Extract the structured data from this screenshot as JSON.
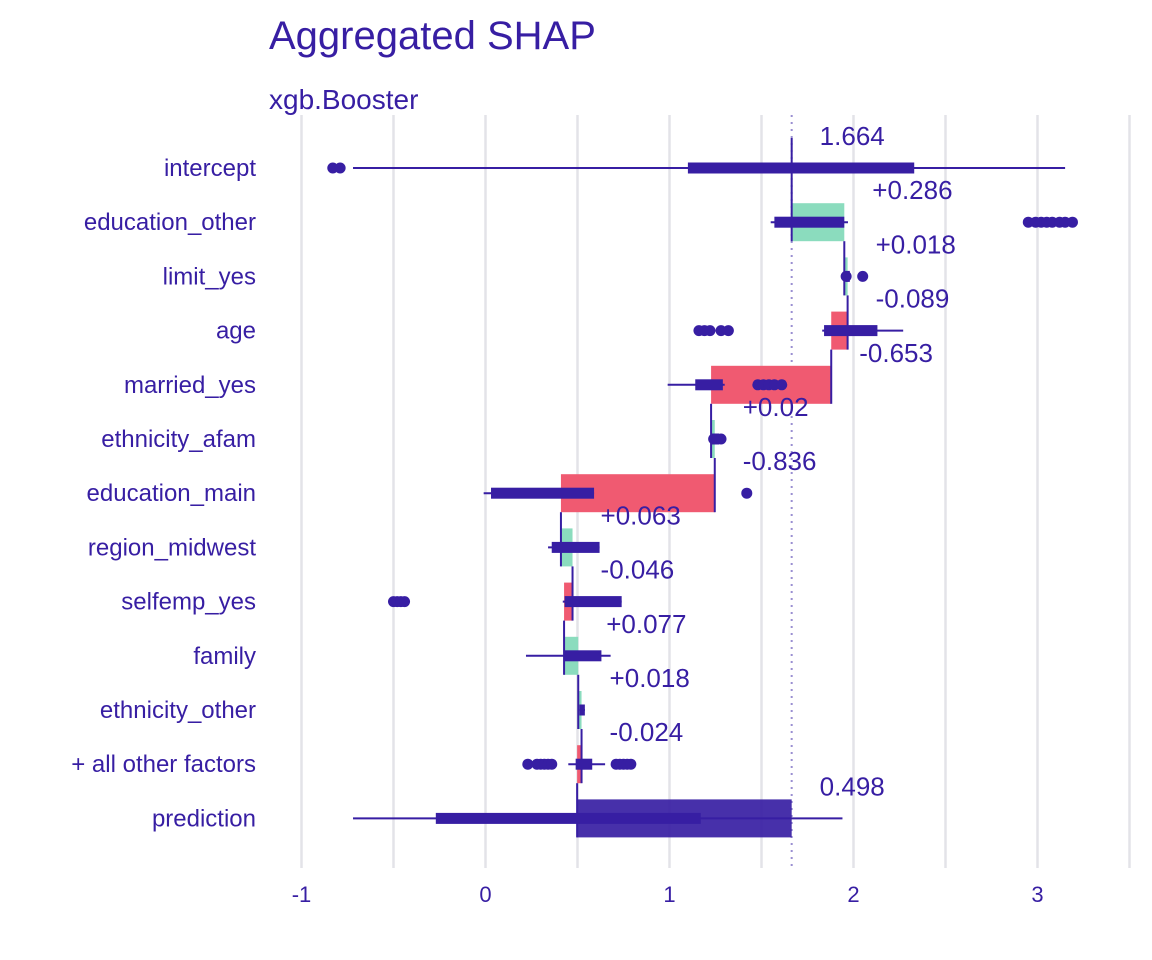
{
  "title": "Aggregated SHAP",
  "subtitle": "xgb.Booster",
  "colors": {
    "text": "#371ea3",
    "positive": "#8bdcbe",
    "negative": "#f05a71",
    "prediction": "#371ea3",
    "grid": "#e3e3e8",
    "boxplot": "#371ea3"
  },
  "chart_data": {
    "type": "bar",
    "subtype": "waterfall-with-boxplots",
    "title": "Aggregated SHAP",
    "subtitle": "xgb.Booster",
    "xlabel": "",
    "ylabel": "",
    "xlim": [
      -1.1,
      3.5
    ],
    "x_ticks": [
      -1,
      0,
      1,
      2,
      3
    ],
    "x_tick_labels": [
      "-1",
      "0",
      "1",
      "2",
      "3"
    ],
    "grid": true,
    "legend": "none",
    "intercept_line": 1.664,
    "categories": [
      "intercept",
      "education_other",
      "limit_yes",
      "age",
      "married_yes",
      "ethnicity_afam",
      "education_main",
      "region_midwest",
      "selfemp_yes",
      "family",
      "ethnicity_other",
      "+ all other factors",
      "prediction"
    ],
    "labels": [
      "1.664",
      "+0.286",
      "+0.018",
      "-0.089",
      "-0.653",
      "+0.02",
      "-0.836",
      "+0.063",
      "-0.046",
      "+0.077",
      "+0.018",
      "-0.024",
      "0.498"
    ],
    "bars": [
      {
        "name": "intercept",
        "start": null,
        "end": null,
        "kind": "none"
      },
      {
        "name": "education_other",
        "start": 1.664,
        "end": 1.95,
        "kind": "positive"
      },
      {
        "name": "limit_yes",
        "start": 1.95,
        "end": 1.968,
        "kind": "positive"
      },
      {
        "name": "age",
        "start": 1.968,
        "end": 1.879,
        "kind": "negative"
      },
      {
        "name": "married_yes",
        "start": 1.879,
        "end": 1.226,
        "kind": "negative"
      },
      {
        "name": "ethnicity_afam",
        "start": 1.226,
        "end": 1.246,
        "kind": "positive"
      },
      {
        "name": "education_main",
        "start": 1.246,
        "end": 0.41,
        "kind": "negative"
      },
      {
        "name": "region_midwest",
        "start": 0.41,
        "end": 0.473,
        "kind": "positive"
      },
      {
        "name": "selfemp_yes",
        "start": 0.473,
        "end": 0.427,
        "kind": "negative"
      },
      {
        "name": "family",
        "start": 0.427,
        "end": 0.504,
        "kind": "positive"
      },
      {
        "name": "ethnicity_other",
        "start": 0.504,
        "end": 0.522,
        "kind": "positive"
      },
      {
        "name": "+ all other factors",
        "start": 0.522,
        "end": 0.498,
        "kind": "negative"
      },
      {
        "name": "prediction",
        "start": 0.498,
        "end": 1.664,
        "kind": "prediction"
      }
    ],
    "boxplots": [
      {
        "name": "intercept",
        "min": -0.72,
        "q1": 1.1,
        "q3": 2.33,
        "max": 3.15,
        "outliers": [
          -0.83,
          -0.79
        ]
      },
      {
        "name": "education_other",
        "min": 1.55,
        "q1": 1.57,
        "q3": 1.95,
        "max": 1.97,
        "outliers": [
          2.95,
          2.99,
          3.02,
          3.05,
          3.08,
          3.12,
          3.15,
          3.19
        ]
      },
      {
        "name": "limit_yes",
        "min": 1.96,
        "q1": 1.96,
        "q3": 1.98,
        "max": 1.98,
        "outliers": [
          1.96,
          2.05
        ]
      },
      {
        "name": "age",
        "min": 1.83,
        "q1": 1.84,
        "q3": 2.13,
        "max": 2.27,
        "outliers": [
          1.16,
          1.19,
          1.22,
          1.28,
          1.32
        ]
      },
      {
        "name": "married_yes",
        "min": 0.99,
        "q1": 1.14,
        "q3": 1.29,
        "max": 1.3,
        "outliers": [
          1.48,
          1.51,
          1.54,
          1.57,
          1.61
        ]
      },
      {
        "name": "ethnicity_afam",
        "min": 1.23,
        "q1": 1.23,
        "q3": 1.27,
        "max": 1.28,
        "outliers": [
          1.24,
          1.28
        ]
      },
      {
        "name": "education_main",
        "min": -0.01,
        "q1": 0.03,
        "q3": 0.59,
        "max": 0.59,
        "outliers": [
          1.42
        ]
      },
      {
        "name": "region_midwest",
        "min": 0.34,
        "q1": 0.36,
        "q3": 0.62,
        "max": 0.62,
        "outliers": []
      },
      {
        "name": "selfemp_yes",
        "min": 0.42,
        "q1": 0.43,
        "q3": 0.74,
        "max": 0.74,
        "outliers": [
          -0.5,
          -0.48,
          -0.46,
          -0.44
        ]
      },
      {
        "name": "family",
        "min": 0.22,
        "q1": 0.43,
        "q3": 0.63,
        "max": 0.68,
        "outliers": []
      },
      {
        "name": "ethnicity_other",
        "min": 0.51,
        "q1": 0.51,
        "q3": 0.54,
        "max": 0.54,
        "outliers": []
      },
      {
        "name": "+ all other factors",
        "min": 0.45,
        "q1": 0.49,
        "q3": 0.58,
        "max": 0.65,
        "outliers": [
          0.23,
          0.28,
          0.3,
          0.32,
          0.34,
          0.36,
          0.71,
          0.73,
          0.75,
          0.77,
          0.79
        ]
      },
      {
        "name": "prediction",
        "min": -0.72,
        "q1": -0.27,
        "q3": 1.17,
        "max": 1.94,
        "outliers": []
      }
    ]
  }
}
